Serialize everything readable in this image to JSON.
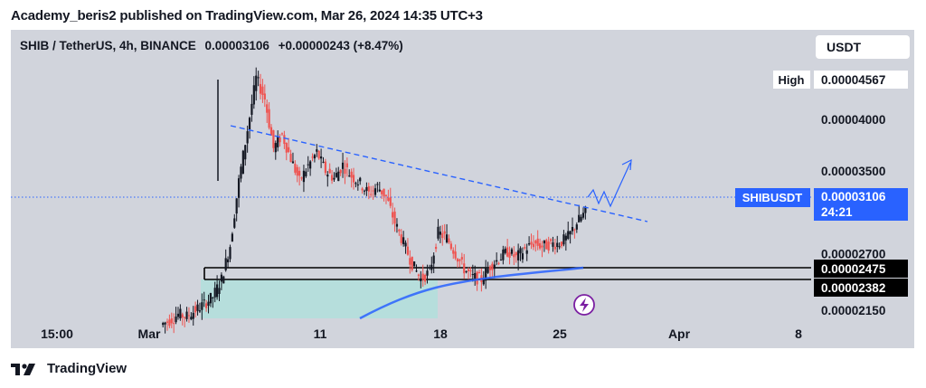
{
  "header": {
    "publisher_line": "Academy_beris2 published on TradingView.com, Mar 26, 2024 14:35 UTC+3"
  },
  "symbol": {
    "title": "SHIB / TetherUS, 4h, BINANCE",
    "price": "0.00003106",
    "change": "+0.00000243 (+8.47%)"
  },
  "currency_button": "USDT",
  "footer": {
    "brand": "TradingView",
    "logo_icon": "tradingview-logo-icon"
  },
  "colors": {
    "panel_bg": "#d1d4dc",
    "up": "#131722",
    "down": "#ef5350",
    "trend": "#2962ff",
    "accent_label": "#2962ff"
  },
  "chart_data": {
    "type": "candlestick",
    "x_ticks": [
      "15:00",
      "Mar",
      "11",
      "18",
      "25",
      "Apr",
      "8"
    ],
    "y_ticks": [
      "0.00004000",
      "0.00003500",
      "0.00002700",
      "0.00002150"
    ],
    "ylim": [
      1.98e-05,
      4.93e-05
    ],
    "labels": {
      "high": {
        "label": "High",
        "value": "0.00004567"
      },
      "current": {
        "symbol": "SHIBUSDT",
        "value": "0.00003106",
        "countdown": "24:21"
      },
      "level_upper": "0.00002475",
      "level_lower": "0.00002382"
    },
    "trendline": {
      "from": [
        "Mar 5",
        3.92e-05
      ],
      "to": [
        "Mar 31",
        2.85e-05
      ],
      "style": "dashed"
    },
    "moving_average": [
      [
        1.98e-05,
        "Mar 15"
      ],
      [
        2.38e-05,
        "Mar 18"
      ],
      [
        2.48e-05,
        "Mar 26"
      ]
    ],
    "support_zone": [
      "Mar 3",
      "Mar 17",
      1.98e-05,
      2.38e-05
    ],
    "projection": [
      "Mar 26",
      "Mar 27",
      "Mar 28",
      "Mar 28",
      "Mar 29"
    ],
    "candles_close": [
      2.05e-05,
      2.11e-05,
      2.09e-05,
      2.15e-05,
      2.21e-05,
      2.28e-05,
      2.45e-05,
      2.78e-05,
      3.4e-05,
      3.9e-05,
      4.4e-05,
      4.2e-05,
      3.72e-05,
      3.85e-05,
      3.62e-05,
      3.4e-05,
      3.55e-05,
      3.68e-05,
      3.5e-05,
      3.43e-05,
      3.56e-05,
      3.45e-05,
      3.38e-05,
      3.28e-05,
      3.35e-05,
      3.25e-05,
      3e-05,
      2.8e-05,
      2.6e-05,
      2.45e-05,
      2.52e-05,
      2.9e-05,
      2.85e-05,
      2.7e-05,
      2.55e-05,
      2.47e-05,
      2.45e-05,
      2.58e-05,
      2.65e-05,
      2.72e-05,
      2.66e-05,
      2.74e-05,
      2.8e-05,
      2.77e-05,
      2.79e-05,
      2.8e-05,
      2.86e-05,
      3e-05,
      3.1e-05
    ]
  }
}
